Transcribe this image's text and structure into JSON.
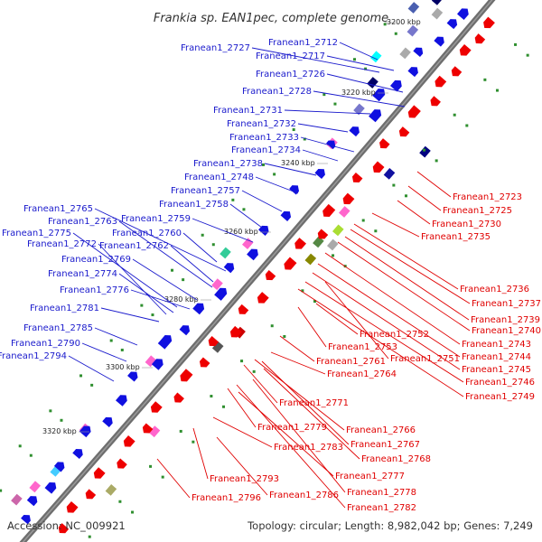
{
  "title": "Frankia sp. EAN1pec, complete genome",
  "footer": {
    "accession": "Accession: NC_009921",
    "summary": "Topology: circular; Length: 8,982,042 bp; Genes: 7,249"
  },
  "colors": {
    "plus_strand_label": "#1a1acc",
    "minus_strand_label": "#e00000",
    "backbone": "#6e6e6e",
    "tick": "#2f8f2f"
  },
  "ticks": [
    "3200 kbp",
    "3220 kbp",
    "3240 kbp",
    "3260 kbp",
    "3280 kbp",
    "3300 kbp",
    "3320 kbp"
  ],
  "plus_labels": [
    "Franean1_2712",
    "Franean1_2717",
    "Franean1_2727",
    "Franean1_2726",
    "Franean1_2728",
    "Franean1_2731",
    "Franean1_2732",
    "Franean1_2733",
    "Franean1_2734",
    "Franean1_2738",
    "Franean1_2748",
    "Franean1_2757",
    "Franean1_2758",
    "Franean1_2759",
    "Franean1_2765",
    "Franean1_2763",
    "Franean1_2760",
    "Franean1_2775",
    "Franean1_2762",
    "Franean1_2772",
    "Franean1_2769",
    "Franean1_2774",
    "Franean1_2776",
    "Franean1_2781",
    "Franean1_2785",
    "Franean1_2790",
    "Franean1_2794"
  ],
  "minus_labels": [
    "Franean1_2723",
    "Franean1_2725",
    "Franean1_2730",
    "Franean1_2735",
    "Franean1_2736",
    "Franean1_2737",
    "Franean1_2739",
    "Franean1_2740",
    "Franean1_2743",
    "Franean1_2744",
    "Franean1_2745",
    "Franean1_2746",
    "Franean1_2749",
    "Franean1_2752",
    "Franean1_2753",
    "Franean1_2751",
    "Franean1_2761",
    "Franean1_2764",
    "Franean1_2771",
    "Franean1_2766",
    "Franean1_2779",
    "Franean1_2767",
    "Franean1_2768",
    "Franean1_2783",
    "Franean1_2777",
    "Franean1_2793",
    "Franean1_2778",
    "Franean1_2786",
    "Franean1_2796",
    "Franean1_2782"
  ]
}
